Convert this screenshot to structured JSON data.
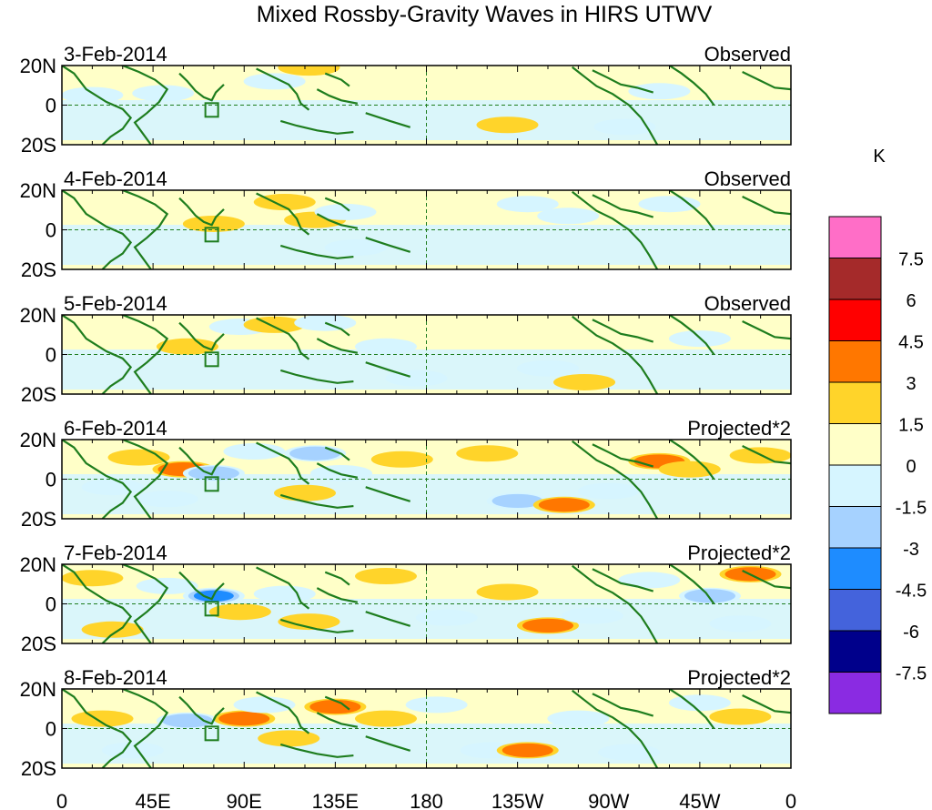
{
  "chart_data": {
    "type": "heatmap",
    "title": "Mixed Rossby-Gravity Waves in HIRS UTWV",
    "units": "K",
    "longitude_ticks": [
      "0",
      "45E",
      "90E",
      "135E",
      "180",
      "135W",
      "90W",
      "45W",
      "0"
    ],
    "latitude_ticks": [
      "20N",
      "0",
      "20S"
    ],
    "latitude_range": [
      -20,
      20
    ],
    "longitude_range": [
      0,
      360
    ],
    "colorbar": {
      "levels": [
        "7.5",
        "6",
        "4.5",
        "3",
        "1.5",
        "0",
        "-1.5",
        "-3",
        "-4.5",
        "-6",
        "-7.5"
      ],
      "colors": [
        "#ff6ec7",
        "#a52a2a",
        "#ff0000",
        "#ff7700",
        "#ffd42a",
        "#ffffc8",
        "#d6f5ff",
        "#a6d2ff",
        "#1e8cff",
        "#4463dc",
        "#00008b",
        "#8a2be2"
      ]
    },
    "panels": [
      {
        "date": "3-Feb-2014",
        "label": "Observed",
        "anomalies": [
          {
            "lon": 15,
            "lat": 5,
            "v": -1.8
          },
          {
            "lon": 30,
            "lat": 9,
            "v": 0.9
          },
          {
            "lon": 50,
            "lat": 6,
            "v": -2.0
          },
          {
            "lon": 60,
            "lat": -8,
            "v": 0.8
          },
          {
            "lon": 105,
            "lat": 12,
            "v": -1.8
          },
          {
            "lon": 120,
            "lat": 2,
            "v": -1.2
          },
          {
            "lon": 122,
            "lat": 19,
            "v": 1.8
          },
          {
            "lon": 140,
            "lat": -8,
            "v": -1.2
          },
          {
            "lon": 160,
            "lat": 5,
            "v": 0.8
          },
          {
            "lon": 195,
            "lat": -7,
            "v": 0.9
          },
          {
            "lon": 220,
            "lat": -10,
            "v": 2.4
          },
          {
            "lon": 230,
            "lat": 6,
            "v": 0.9
          },
          {
            "lon": 278,
            "lat": -11,
            "v": -1.7
          },
          {
            "lon": 295,
            "lat": 7,
            "v": -1.7
          },
          {
            "lon": 320,
            "lat": -3,
            "v": -1.2
          }
        ]
      },
      {
        "date": "4-Feb-2014",
        "label": "Observed",
        "anomalies": [
          {
            "lon": 15,
            "lat": -5,
            "v": 0.8
          },
          {
            "lon": 48,
            "lat": 8,
            "v": 0.8
          },
          {
            "lon": 75,
            "lat": 3,
            "v": 2.2
          },
          {
            "lon": 60,
            "lat": -12,
            "v": -0.9
          },
          {
            "lon": 110,
            "lat": 14,
            "v": 1.8
          },
          {
            "lon": 125,
            "lat": 5,
            "v": 2.0
          },
          {
            "lon": 140,
            "lat": 9,
            "v": -2.6
          },
          {
            "lon": 145,
            "lat": -9,
            "v": -1.8
          },
          {
            "lon": 190,
            "lat": 5,
            "v": 0.8
          },
          {
            "lon": 230,
            "lat": 13,
            "v": -1.7
          },
          {
            "lon": 250,
            "lat": 7,
            "v": -2.7
          },
          {
            "lon": 300,
            "lat": 13,
            "v": -1.7
          },
          {
            "lon": 315,
            "lat": -3,
            "v": 0.9
          },
          {
            "lon": 340,
            "lat": -8,
            "v": 1.2
          }
        ]
      },
      {
        "date": "5-Feb-2014",
        "label": "Observed",
        "anomalies": [
          {
            "lon": 25,
            "lat": 3,
            "v": 0.8
          },
          {
            "lon": 62,
            "lat": 4,
            "v": 1.9
          },
          {
            "lon": 88,
            "lat": 14,
            "v": -1.7
          },
          {
            "lon": 105,
            "lat": 15,
            "v": 1.8
          },
          {
            "lon": 118,
            "lat": -3,
            "v": 0.9
          },
          {
            "lon": 130,
            "lat": 16,
            "v": -1.8
          },
          {
            "lon": 160,
            "lat": 4,
            "v": -1.6
          },
          {
            "lon": 175,
            "lat": -12,
            "v": -1.8
          },
          {
            "lon": 210,
            "lat": 8,
            "v": -1.2
          },
          {
            "lon": 240,
            "lat": -7,
            "v": -1.8
          },
          {
            "lon": 258,
            "lat": -14,
            "v": 2.0
          },
          {
            "lon": 280,
            "lat": -8,
            "v": 0.9
          },
          {
            "lon": 315,
            "lat": 8,
            "v": -1.7
          },
          {
            "lon": 340,
            "lat": -5,
            "v": 0.9
          }
        ]
      },
      {
        "date": "6-Feb-2014",
        "label": "Projected*2",
        "anomalies": [
          {
            "lon": 25,
            "lat": -4,
            "v": -1.8
          },
          {
            "lon": 38,
            "lat": 11,
            "v": 1.8
          },
          {
            "lon": 60,
            "lat": 5,
            "v": 3.6
          },
          {
            "lon": 52,
            "lat": -10,
            "v": -1.8
          },
          {
            "lon": 75,
            "lat": 3,
            "v": -3.4
          },
          {
            "lon": 95,
            "lat": 14,
            "v": -2.0
          },
          {
            "lon": 120,
            "lat": -7,
            "v": 2.3
          },
          {
            "lon": 125,
            "lat": 13,
            "v": -3.8
          },
          {
            "lon": 138,
            "lat": 3,
            "v": -2.0
          },
          {
            "lon": 168,
            "lat": 10,
            "v": 1.8
          },
          {
            "lon": 210,
            "lat": 13,
            "v": 1.9
          },
          {
            "lon": 225,
            "lat": -11,
            "v": -3.2
          },
          {
            "lon": 248,
            "lat": -13,
            "v": 3.2
          },
          {
            "lon": 270,
            "lat": -6,
            "v": -1.7
          },
          {
            "lon": 295,
            "lat": 9,
            "v": 3.5
          },
          {
            "lon": 310,
            "lat": 5,
            "v": 2.4
          },
          {
            "lon": 345,
            "lat": 12,
            "v": 1.8
          }
        ]
      },
      {
        "date": "7-Feb-2014",
        "label": "Projected*2",
        "anomalies": [
          {
            "lon": 15,
            "lat": 13,
            "v": 1.8
          },
          {
            "lon": 25,
            "lat": -13,
            "v": 2.0
          },
          {
            "lon": 52,
            "lat": 9,
            "v": -1.8
          },
          {
            "lon": 75,
            "lat": 4,
            "v": -4.6
          },
          {
            "lon": 88,
            "lat": -4,
            "v": 2.6
          },
          {
            "lon": 110,
            "lat": 5,
            "v": -2.8
          },
          {
            "lon": 122,
            "lat": -9,
            "v": 1.8
          },
          {
            "lon": 160,
            "lat": 14,
            "v": 2.4
          },
          {
            "lon": 190,
            "lat": -7,
            "v": -1.7
          },
          {
            "lon": 220,
            "lat": 6,
            "v": 1.8
          },
          {
            "lon": 240,
            "lat": -11,
            "v": 3.2
          },
          {
            "lon": 262,
            "lat": -6,
            "v": -1.7
          },
          {
            "lon": 290,
            "lat": 12,
            "v": -1.8
          },
          {
            "lon": 320,
            "lat": 4,
            "v": -3.2
          },
          {
            "lon": 340,
            "lat": 15,
            "v": 3.3
          },
          {
            "lon": 335,
            "lat": -10,
            "v": -1.7
          }
        ]
      },
      {
        "date": "8-Feb-2014",
        "label": "Projected*2",
        "anomalies": [
          {
            "lon": 20,
            "lat": 5,
            "v": 1.8
          },
          {
            "lon": 35,
            "lat": -11,
            "v": -1.7
          },
          {
            "lon": 62,
            "lat": 4,
            "v": -3.2
          },
          {
            "lon": 90,
            "lat": 5,
            "v": 3.2
          },
          {
            "lon": 100,
            "lat": 12,
            "v": -2.0
          },
          {
            "lon": 112,
            "lat": -5,
            "v": 2.4
          },
          {
            "lon": 135,
            "lat": 11,
            "v": 4.0
          },
          {
            "lon": 160,
            "lat": 5,
            "v": 1.8
          },
          {
            "lon": 185,
            "lat": 12,
            "v": -1.7
          },
          {
            "lon": 212,
            "lat": -11,
            "v": -1.8
          },
          {
            "lon": 230,
            "lat": -11,
            "v": 3.4
          },
          {
            "lon": 255,
            "lat": 5,
            "v": -1.7
          },
          {
            "lon": 280,
            "lat": -12,
            "v": -1.8
          },
          {
            "lon": 315,
            "lat": 13,
            "v": -1.7
          },
          {
            "lon": 335,
            "lat": 6,
            "v": 1.8
          }
        ]
      }
    ]
  }
}
